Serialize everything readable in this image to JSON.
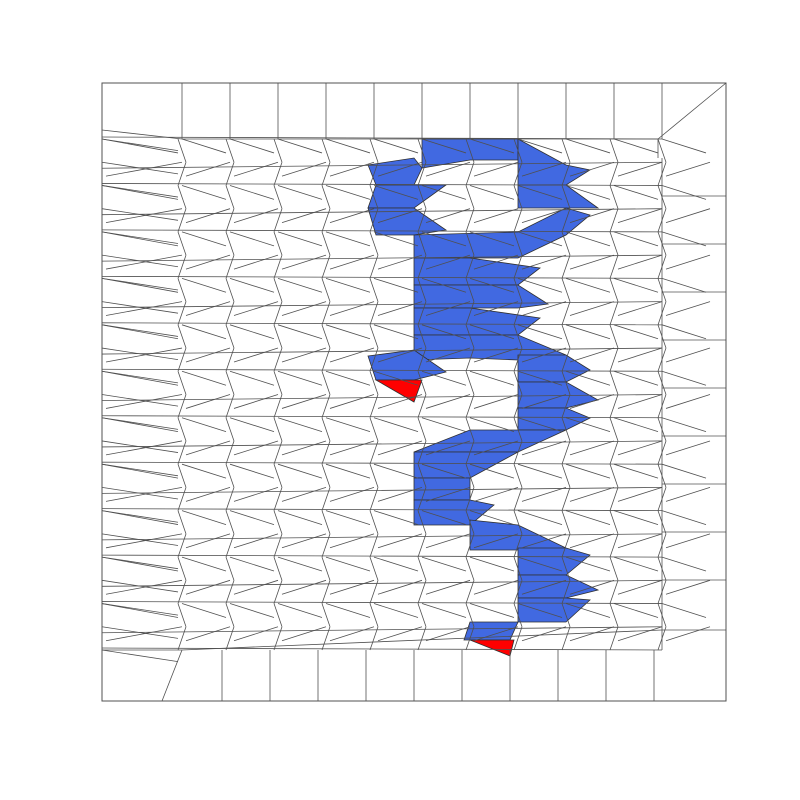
{
  "figure": {
    "background": "#ffffff",
    "line_color": "#505050",
    "fill_colors": {
      "path": "#4169E1",
      "marker": "#FF0000"
    }
  }
}
